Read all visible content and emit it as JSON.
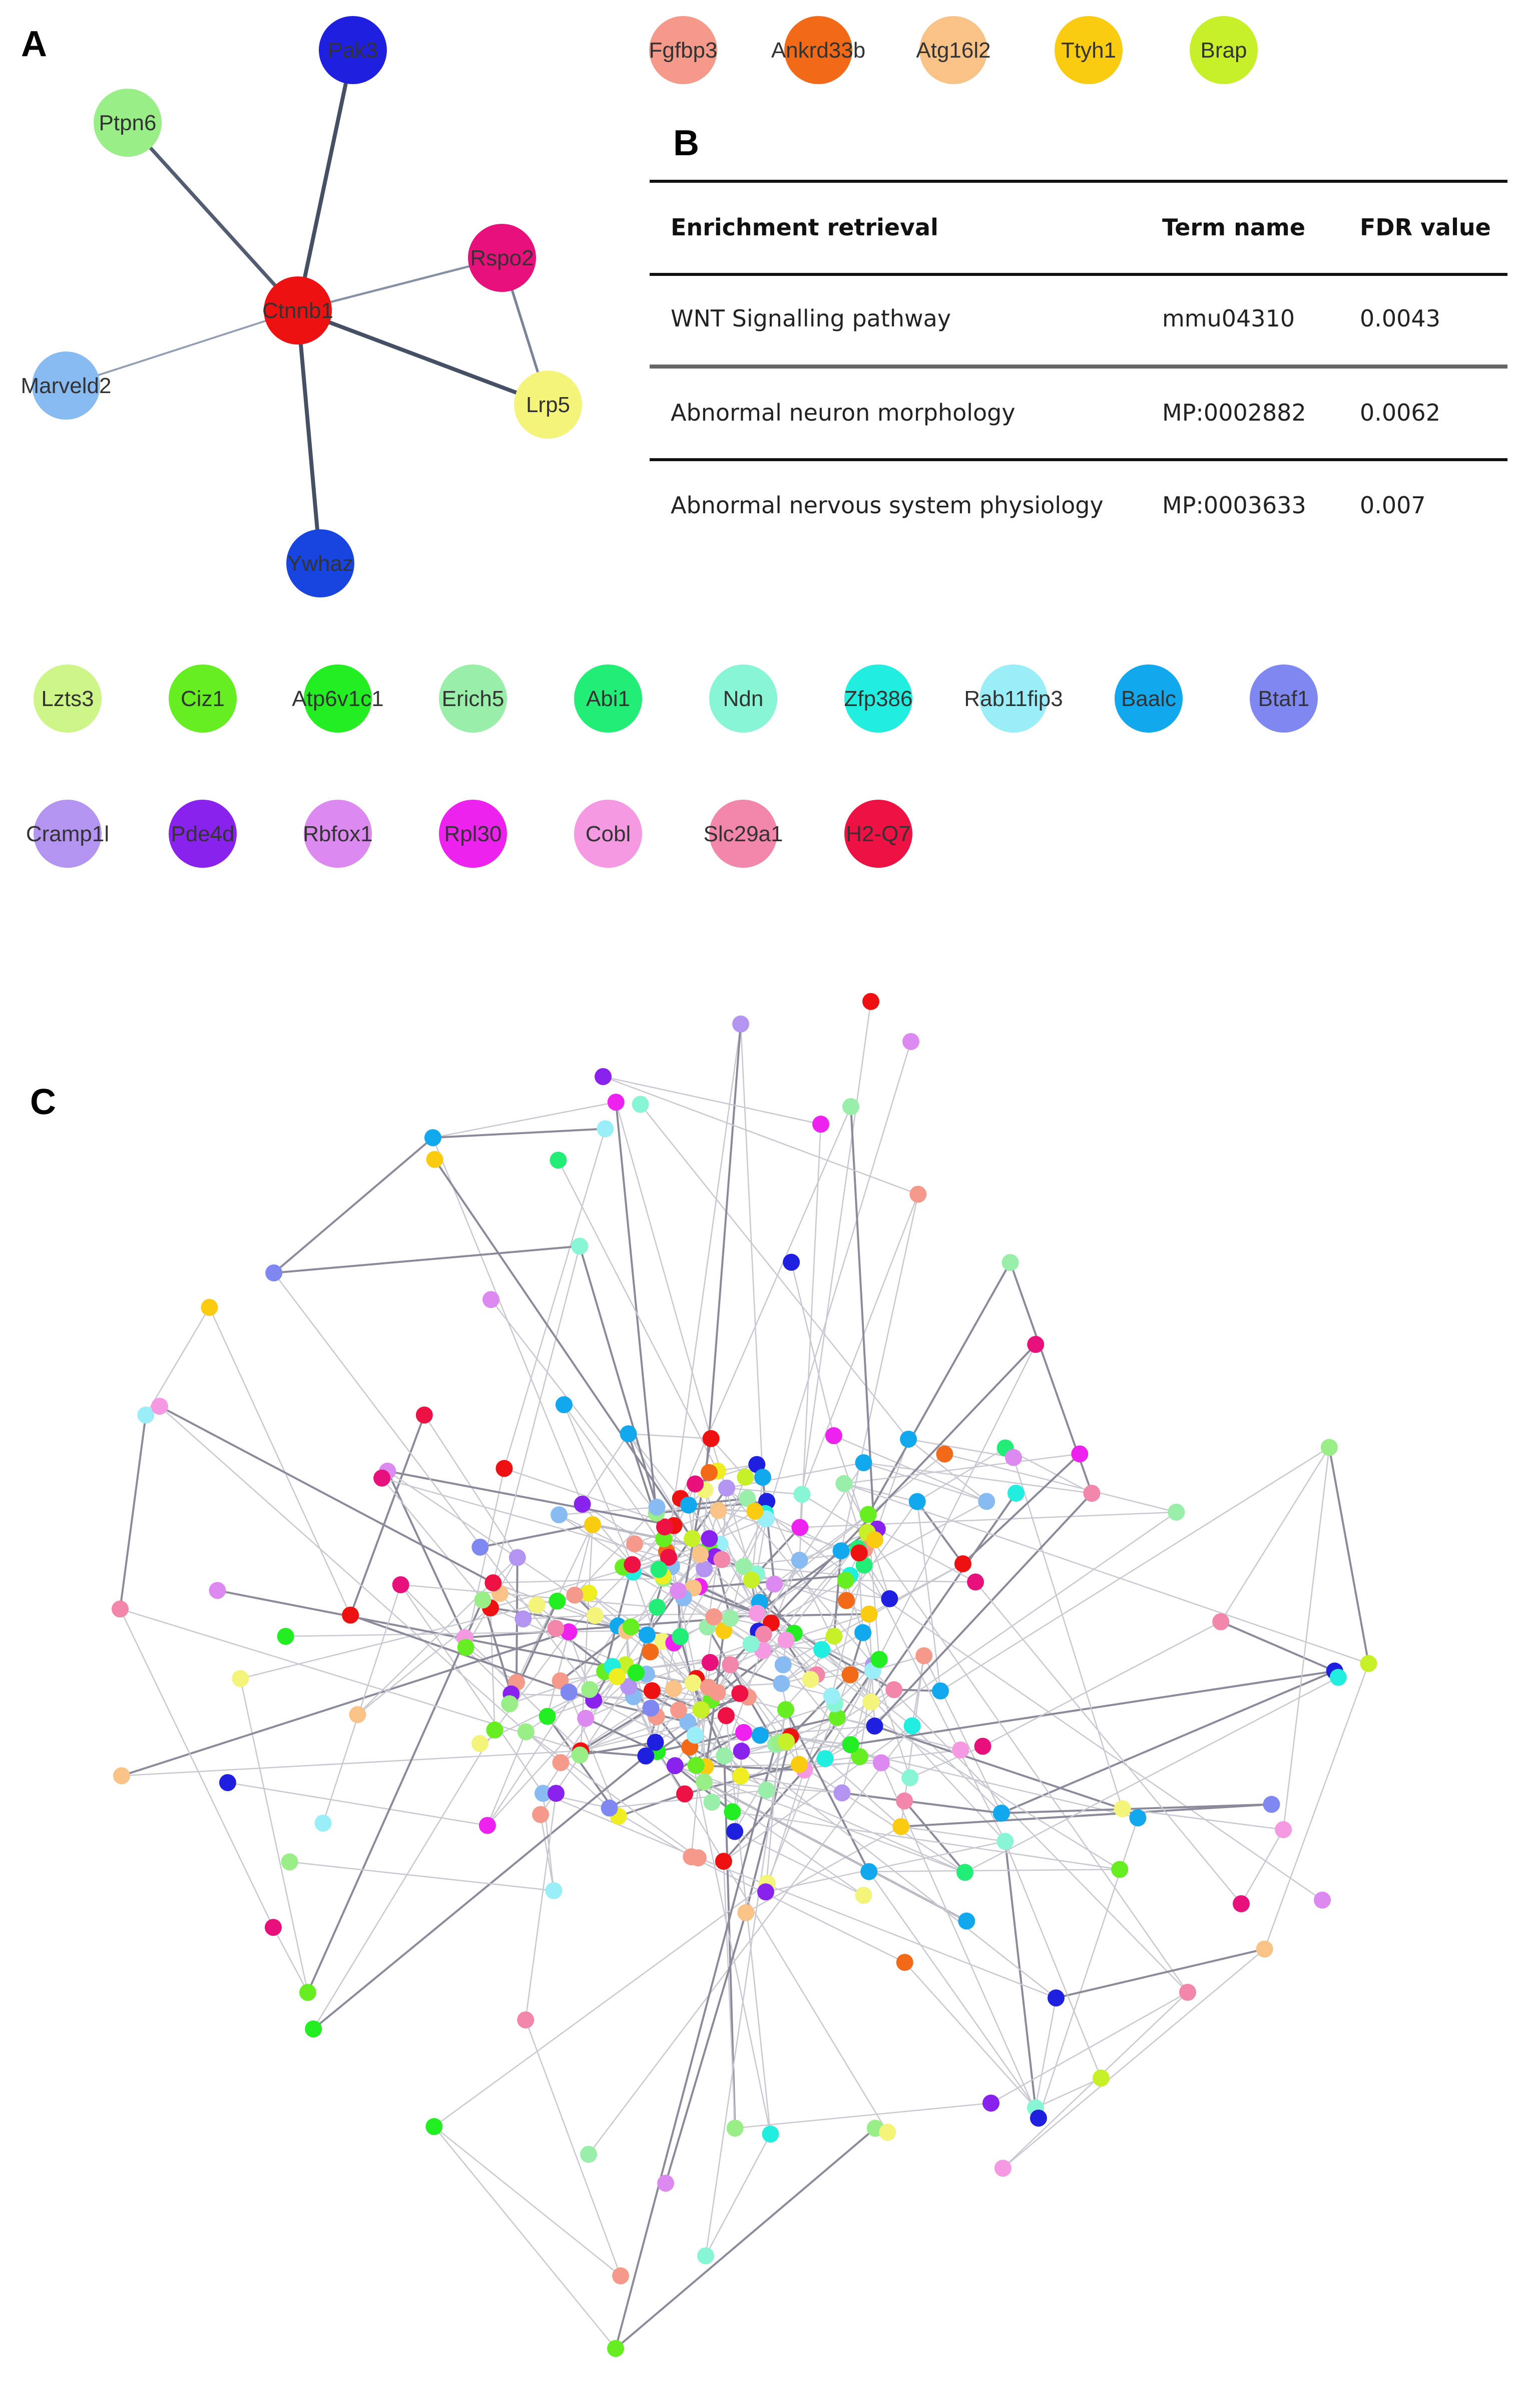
{
  "panels": {
    "a": "A",
    "b": "B",
    "c": "C"
  },
  "network_a": {
    "nodes": [
      {
        "id": "Pak3",
        "color": "#1f1fe0"
      },
      {
        "id": "Ptpn6",
        "color": "#99ee88"
      },
      {
        "id": "Ctnnb1",
        "color": "#ee1111"
      },
      {
        "id": "Rspo2",
        "color": "#e8107a"
      },
      {
        "id": "Marveld2",
        "color": "#88bbf2"
      },
      {
        "id": "Lrp5",
        "color": "#f4f47a"
      },
      {
        "id": "Ywhaz",
        "color": "#1844e0"
      }
    ],
    "edges": [
      {
        "source": "Ctnnb1",
        "target": "Pak3",
        "weight": 0.85
      },
      {
        "source": "Ctnnb1",
        "target": "Ptpn6",
        "weight": 0.75
      },
      {
        "source": "Ctnnb1",
        "target": "Rspo2",
        "weight": 0.35
      },
      {
        "source": "Ctnnb1",
        "target": "Marveld2",
        "weight": 0.25
      },
      {
        "source": "Ctnnb1",
        "target": "Lrp5",
        "weight": 0.85
      },
      {
        "source": "Ctnnb1",
        "target": "Ywhaz",
        "weight": 0.85
      },
      {
        "source": "Rspo2",
        "target": "Lrp5",
        "weight": 0.45
      }
    ],
    "isolated_top": [
      {
        "id": "Fgfbp3",
        "color": "#f5998a"
      },
      {
        "id": "Ankrd33b",
        "color": "#f26a18"
      },
      {
        "id": "Atg16l2",
        "color": "#f9c287"
      },
      {
        "id": "Ttyh1",
        "color": "#f9cc12"
      },
      {
        "id": "Brap",
        "color": "#c8f028"
      }
    ],
    "isolated_row1": [
      {
        "id": "Lzts3",
        "color": "#cdf588"
      },
      {
        "id": "Ciz1",
        "color": "#66ee22"
      },
      {
        "id": "Atp6v1c1",
        "color": "#22ee22"
      },
      {
        "id": "Erich5",
        "color": "#99eeaa"
      },
      {
        "id": "Abi1",
        "color": "#22ee77"
      },
      {
        "id": "Ndn",
        "color": "#88f5d5"
      },
      {
        "id": "Zfp386",
        "color": "#22eee0"
      },
      {
        "id": "Rab11fip3",
        "color": "#99eef7"
      },
      {
        "id": "Baalc",
        "color": "#11a8ee"
      },
      {
        "id": "Btaf1",
        "color": "#7f88f0"
      }
    ],
    "isolated_row2": [
      {
        "id": "Cramp1l",
        "color": "#b394f0"
      },
      {
        "id": "Pde4d",
        "color": "#8a22ee"
      },
      {
        "id": "Rbfox1",
        "color": "#dd8af0"
      },
      {
        "id": "Rpl30",
        "color": "#ee22ee"
      },
      {
        "id": "Cobl",
        "color": "#f59ae2"
      },
      {
        "id": "Slc29a1",
        "color": "#f287ab"
      },
      {
        "id": "H2-Q7",
        "color": "#ee1144"
      }
    ]
  },
  "table_b": {
    "headers": [
      "Enrichment retrieval",
      "Term name",
      "FDR value"
    ],
    "rows": [
      [
        "WNT Signalling pathway",
        "mmu04310",
        "0.0043"
      ],
      [
        "Abnormal neuron morphology",
        "MP:0002882",
        "0.0062"
      ],
      [
        "Abnormal nervous system physiology",
        "MP:0003633",
        "0.007"
      ]
    ]
  },
  "network_c": {
    "palette": [
      "#1f1fe0",
      "#99ee88",
      "#ee1111",
      "#e8107a",
      "#88bbf2",
      "#f4f47a",
      "#f5998a",
      "#f26a18",
      "#f9c287",
      "#f9cc12",
      "#c8f028",
      "#66ee22",
      "#22ee22",
      "#99eeaa",
      "#22ee77",
      "#88f5d5",
      "#22eee0",
      "#99eef7",
      "#11a8ee",
      "#7f88f0",
      "#b394f0",
      "#8a22ee",
      "#dd8af0",
      "#ee22ee",
      "#f59ae2",
      "#f287ab",
      "#ee1144",
      "#eeee22"
    ],
    "node_count": 300
  }
}
